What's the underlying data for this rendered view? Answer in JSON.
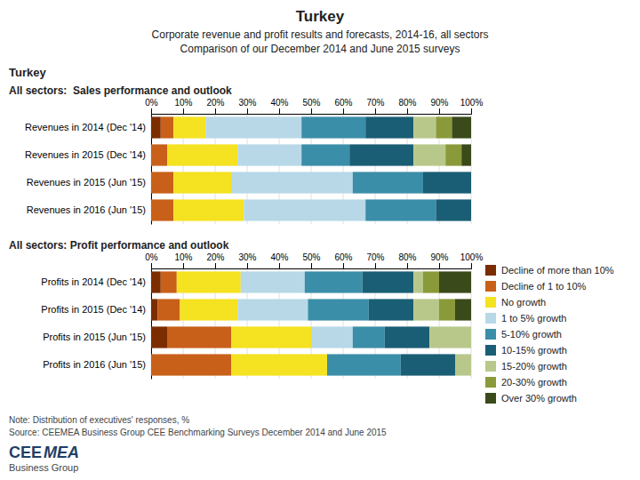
{
  "title": "Turkey",
  "subtitle": [
    "Corporate revenue and profit results and forecasts, 2014-16, all sectors",
    "Comparison of our December 2014 and June 2015 surveys"
  ],
  "annotations": [
    "Turkey",
    "Note: Distribution of executives' responses, %",
    "Source: CEEMEA Business Group CEE Benchmarking Surveys December 2014 and June 2015",
    "CEE",
    "MEA",
    "Business Group"
  ],
  "chart_data": [
    {
      "type": "bar",
      "title": "All sectors:  Sales performance and outlook",
      "orientation": "horizontal",
      "stacked": true,
      "grid": true,
      "xlim": [
        0,
        100
      ],
      "xticks": [
        {
          "value": 0,
          "label": "0%"
        },
        {
          "value": 10,
          "label": "10%"
        },
        {
          "value": 20,
          "label": "20%"
        },
        {
          "value": 30,
          "label": "30%"
        },
        {
          "value": 40,
          "label": "40%"
        },
        {
          "value": 50,
          "label": "50%"
        },
        {
          "value": 60,
          "label": "60%"
        },
        {
          "value": 70,
          "label": "70%"
        },
        {
          "value": 80,
          "label": "80%"
        },
        {
          "value": 90,
          "label": "90%"
        },
        {
          "value": 100,
          "label": "100%"
        }
      ],
      "categories": [
        "Revenues in 2014 (Dec '14)",
        "Revenues in 2015 (Dec '14)",
        "Revenues in 2015 (Jun '15)",
        "Revenues in 2016 (Jun '15)"
      ],
      "series": [
        {
          "color": "#7B2D00",
          "values": [
            3,
            0,
            0,
            0
          ]
        },
        {
          "color": "#C8601A",
          "values": [
            4,
            5,
            7,
            7
          ]
        },
        {
          "color": "#F5E220",
          "values": [
            10,
            22,
            18,
            22
          ]
        },
        {
          "color": "#B8D8E8",
          "values": [
            30,
            20,
            38,
            38
          ]
        },
        {
          "color": "#3B8EA8",
          "values": [
            20,
            15,
            22,
            22
          ]
        },
        {
          "color": "#1A5E75",
          "values": [
            15,
            20,
            15,
            11
          ]
        },
        {
          "color": "#B8C88A",
          "values": [
            7,
            10,
            0,
            0
          ]
        },
        {
          "color": "#8A9A3A",
          "values": [
            5,
            5,
            0,
            0
          ]
        },
        {
          "color": "#3A4A1A",
          "values": [
            6,
            3,
            0,
            0
          ]
        }
      ]
    },
    {
      "type": "bar",
      "title": "All sectors: Profit performance and outlook",
      "orientation": "horizontal",
      "stacked": true,
      "grid": true,
      "legend": "right",
      "xlim": [
        0,
        100
      ],
      "xticks": [
        {
          "value": 0,
          "label": "0%"
        },
        {
          "value": 10,
          "label": "10%"
        },
        {
          "value": 20,
          "label": "20%"
        },
        {
          "value": 30,
          "label": "30%"
        },
        {
          "value": 40,
          "label": "40%"
        },
        {
          "value": 50,
          "label": "50%"
        },
        {
          "value": 60,
          "label": "60%"
        },
        {
          "value": 70,
          "label": "70%"
        },
        {
          "value": 80,
          "label": "80%"
        },
        {
          "value": 90,
          "label": "90%"
        },
        {
          "value": 100,
          "label": "100%"
        }
      ],
      "categories": [
        "Profits in 2014 (Dec '14)",
        "Profits in 2015 (Dec '14)",
        "Profits in 2015 (Jun '15)",
        "Profits in 2016 (Jun '15)"
      ],
      "series": [
        {
          "name": "Decline of more than 10%",
          "color": "#7B2D00",
          "values": [
            3,
            2,
            5,
            0
          ]
        },
        {
          "name": "Decline of 1 to 10%",
          "color": "#C8601A",
          "values": [
            5,
            7,
            20,
            25
          ]
        },
        {
          "name": "No growth",
          "color": "#F5E220",
          "values": [
            20,
            18,
            25,
            30
          ]
        },
        {
          "name": "1 to 5% growth",
          "color": "#B8D8E8",
          "values": [
            20,
            22,
            13,
            0
          ]
        },
        {
          "name": "5-10% growth",
          "color": "#3B8EA8",
          "values": [
            18,
            19,
            10,
            23
          ]
        },
        {
          "name": "10-15% growth",
          "color": "#1A5E75",
          "values": [
            16,
            14,
            14,
            17
          ]
        },
        {
          "name": "15-20% growth",
          "color": "#B8C88A",
          "values": [
            3,
            8,
            13,
            5
          ]
        },
        {
          "name": "20-30% growth",
          "color": "#8A9A3A",
          "values": [
            5,
            5,
            0,
            0
          ]
        },
        {
          "name": "Over 30% growth",
          "color": "#3A4A1A",
          "values": [
            10,
            5,
            0,
            0
          ]
        }
      ]
    }
  ]
}
